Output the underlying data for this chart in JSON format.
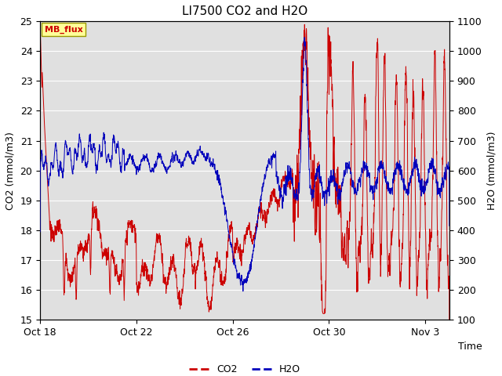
{
  "title": "LI7500 CO2 and H2O",
  "xlabel": "Time",
  "ylabel_left": "CO2 (mmol/m3)",
  "ylabel_right": "H2O (mmol/m3)",
  "ylim_left": [
    15.0,
    25.0
  ],
  "ylim_right": [
    100,
    1100
  ],
  "yticks_left": [
    15.0,
    16.0,
    17.0,
    18.0,
    19.0,
    20.0,
    21.0,
    22.0,
    23.0,
    24.0,
    25.0
  ],
  "yticks_right": [
    100,
    200,
    300,
    400,
    500,
    600,
    700,
    800,
    900,
    1000,
    1100
  ],
  "xtick_labels": [
    "Oct 18",
    "Oct 22",
    "Oct 26",
    "Oct 30",
    "Nov 3"
  ],
  "xtick_positions": [
    0,
    4,
    8,
    12,
    16
  ],
  "xlim": [
    0,
    17
  ],
  "co2_color": "#cc0000",
  "h2o_color": "#0000bb",
  "background_color": "#e0e0e0",
  "grid_color": "#ffffff",
  "annotation_text": "MB_flux",
  "annotation_bg": "#ffff99",
  "annotation_border": "#999900",
  "legend_co2": "CO2",
  "legend_h2o": "H2O",
  "title_fontsize": 11,
  "axis_label_fontsize": 9,
  "tick_fontsize": 9,
  "legend_fontsize": 9,
  "linewidth": 0.7
}
